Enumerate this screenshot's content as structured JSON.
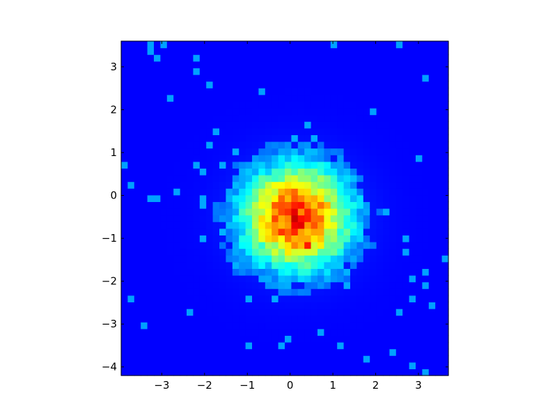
{
  "chart_data": {
    "type": "heatmap",
    "title": "",
    "xlabel": "",
    "ylabel": "",
    "xlim": [
      -3.95,
      3.7
    ],
    "ylim": [
      -4.2,
      3.6
    ],
    "xticks": [
      -3,
      -2,
      -1,
      0,
      1,
      2,
      3
    ],
    "yticks": [
      -4,
      -3,
      -2,
      -1,
      0,
      1,
      2,
      3
    ],
    "xtick_labels": [
      "−3",
      "−2",
      "−1",
      "0",
      "1",
      "2",
      "3"
    ],
    "ytick_labels": [
      "−4",
      "−3",
      "−2",
      "−1",
      "0",
      "1",
      "2",
      "3"
    ],
    "colormap": "jet",
    "grid": false,
    "distribution": {
      "kind": "2d-gaussian-histogram",
      "center": [
        0.15,
        -0.5
      ],
      "sigma": [
        0.95,
        0.9
      ],
      "bins": [
        50,
        50
      ],
      "peak_value": 1.0,
      "hotspots": [
        {
          "x": 0.35,
          "y": -1.15,
          "value": 1.0
        },
        {
          "x": 0.1,
          "y": -0.35,
          "value": 0.9
        },
        {
          "x": 0.3,
          "y": -0.6,
          "value": 0.85
        },
        {
          "x": -0.25,
          "y": -0.2,
          "value": 0.75
        },
        {
          "x": 0.15,
          "y": 0.2,
          "value": 0.65
        }
      ]
    },
    "colors": {
      "background": "#00007f",
      "low": "#0000ff",
      "mid": "#00ffff",
      "high": "#ffff00",
      "peak": "#7f0000"
    }
  }
}
